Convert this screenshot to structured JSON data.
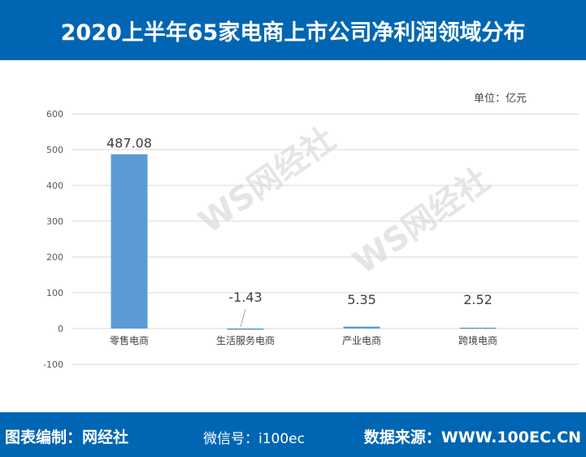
{
  "header": {
    "title": "2020上半年65家电商上市公司净利润领域分布"
  },
  "footer": {
    "editor": "图表编制：网经社",
    "source": "数据来源：WWW.100EC.CN",
    "wechat": "微信号：i100ec"
  },
  "watermark": {
    "text": "网经社",
    "url": "WWW.100EC.CN"
  },
  "chart_data": {
    "type": "bar",
    "unit_label": "单位：亿元",
    "categories": [
      "零售电商",
      "生活服务电商",
      "产业电商",
      "跨境电商"
    ],
    "values": [
      487.08,
      -1.43,
      5.35,
      2.52
    ],
    "data_labels": [
      "487.08",
      "-1.43",
      "5.35",
      "2.52"
    ],
    "ylim": [
      -100,
      600
    ],
    "yticks": [
      600,
      500,
      400,
      300,
      200,
      100,
      0,
      -100
    ],
    "grid": true,
    "bar_color": "#5b9bd5"
  }
}
